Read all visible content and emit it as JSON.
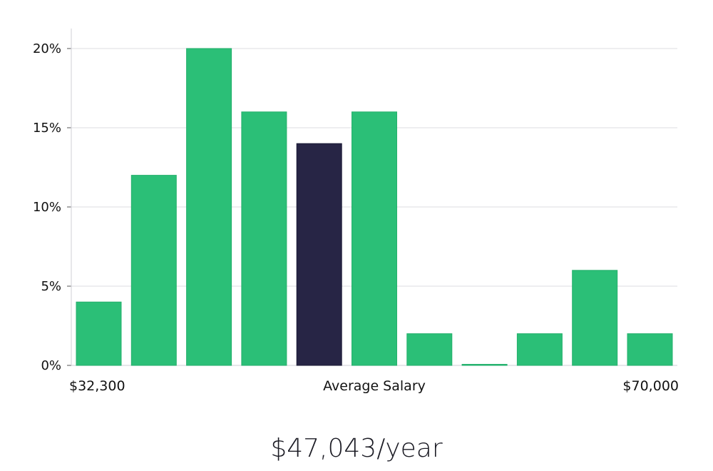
{
  "chart_data": {
    "type": "bar",
    "title": "",
    "xlabel": "Average Salary",
    "ylabel": "",
    "x_range_labels": {
      "min": "$32,300",
      "max": "$70,000"
    },
    "ylim": [
      0,
      20
    ],
    "yticks": [
      0,
      5,
      10,
      15,
      20
    ],
    "ytick_labels": [
      "0%",
      "5%",
      "10%",
      "15%",
      "20%"
    ],
    "grid": true,
    "values": [
      4,
      12,
      20,
      16,
      14,
      16,
      2,
      0,
      2,
      6,
      2
    ],
    "highlight_index": 4,
    "colors": {
      "bar": "#2bbf77",
      "highlight": "#272545",
      "grid": "#e3e3e8",
      "axis": "#d7d7dd"
    }
  },
  "summary": {
    "salary": "$47,043/year"
  }
}
